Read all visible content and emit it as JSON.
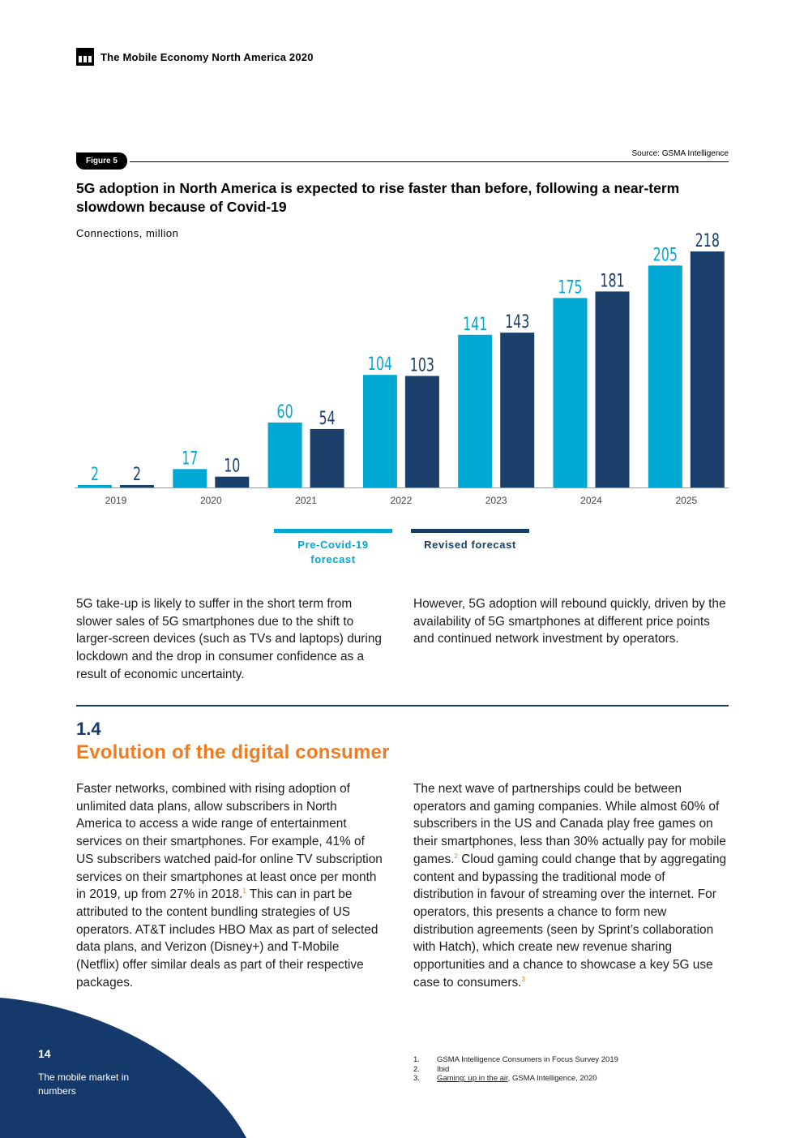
{
  "header": {
    "logo_icon": "mobile-economy-logo-icon",
    "title": "The Mobile Economy North America 2020"
  },
  "figure": {
    "tag": "Figure 5",
    "source": "Source: GSMA Intelligence",
    "title": "5G adoption in North America is expected to rise faster than before, following a near-term slowdown because of Covid-19",
    "unit_label": "Connections, million"
  },
  "chart_data": {
    "type": "bar",
    "title": "5G adoption in North America is expected to rise faster than before, following a near-term slowdown because of Covid-19",
    "ylabel": "Connections, million",
    "xlabel": "",
    "categories": [
      "2019",
      "2020",
      "2021",
      "2022",
      "2023",
      "2024",
      "2025"
    ],
    "series": [
      {
        "name": "Pre-Covid-19 forecast",
        "color": "#00a9d3",
        "values": [
          2,
          17,
          60,
          104,
          141,
          175,
          205
        ]
      },
      {
        "name": "Revised forecast",
        "color": "#1a3f6b",
        "values": [
          2,
          10,
          54,
          103,
          143,
          181,
          218
        ]
      }
    ],
    "ylim": [
      0,
      218
    ],
    "grid": false,
    "legend": "bottom-center"
  },
  "legend": {
    "pre_covid": "Pre-Covid-19 forecast",
    "revised": "Revised forecast"
  },
  "body": {
    "para1": "5G take-up is likely to suffer in the short term from slower sales of 5G smartphones due to the shift to larger-screen devices (such as TVs and laptops) during lockdown and the drop in consumer confidence as a result of economic uncertainty.",
    "para2": "However, 5G adoption will rebound quickly, driven by the availability of 5G smartphones at different price points and continued network investment by operators."
  },
  "section": {
    "number": "1.4",
    "title": "Evolution of the digital consumer",
    "left_a": "Faster networks, combined with rising adoption of unlimited data plans, allow subscribers in North America to access a wide range of entertainment services on their smartphones. For example, 41% of US subscribers watched paid-for online TV subscription services on their smartphones at least once per month in 2019, up from 27% in 2018.",
    "left_ref": "1",
    "left_b": " This can in part be attributed to the content bundling strategies of US operators. AT&T includes HBO Max as part of selected data plans, and Verizon (Disney+) and T-Mobile (Netflix) offer similar deals as part of their respective packages.",
    "right_a": "The next wave of partnerships could be between operators and gaming companies. While almost 60% of subscribers in the US and Canada play free games on their smartphones, less than 30% actually pay for mobile games.",
    "right_ref1": "2",
    "right_b": " Cloud gaming could change that by aggregating content and bypassing the traditional mode of distribution in favour of streaming over the internet. For operators, this presents a chance to form new distribution agreements (seen by Sprint’s collaboration with Hatch), which create new revenue sharing opportunities and a chance to showcase a key 5G use case to consumers.",
    "right_ref2": "3"
  },
  "footnotes": [
    {
      "num": "1.",
      "text": "GSMA Intelligence Consumers in Focus Survey 2019",
      "link": ""
    },
    {
      "num": "2.",
      "text": "Ibid",
      "link": ""
    },
    {
      "num": "3.",
      "text": ", GSMA Intelligence, 2020",
      "link": "Gaming: up in the air"
    }
  ],
  "footer": {
    "page_number": "14",
    "section_name": "The mobile market in numbers",
    "corner_color": "#14396a"
  }
}
